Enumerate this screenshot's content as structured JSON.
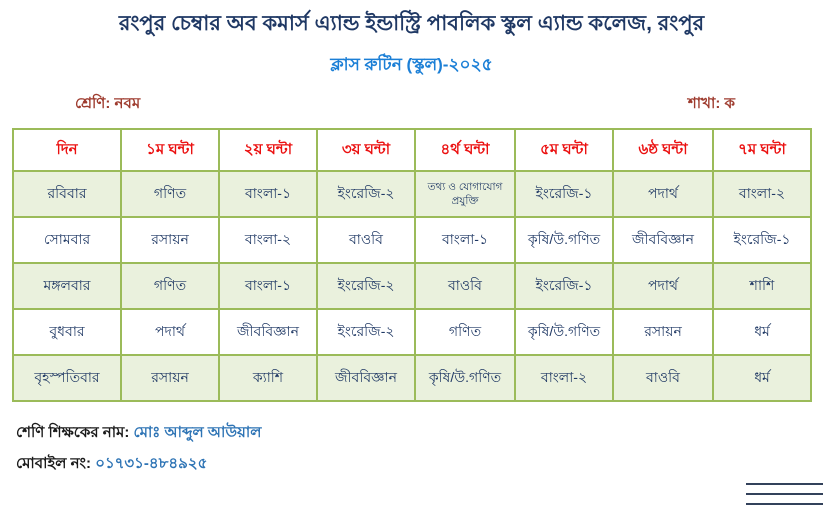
{
  "page": {
    "title": "রংপুর চেম্বার অব কমার্স এ্যান্ড ইন্ডাস্ট্রি পাবলিক স্কুল এ্যান্ড কলেজ, রংপুর",
    "subtitle": "ক্লাস রুটিন (স্কুল)-২০২৫",
    "class_label": "শ্রেণি: নবম",
    "section_label": "শাখা: ক"
  },
  "routine_table": {
    "headers": [
      "দিন",
      "১ম ঘন্টা",
      "২য় ঘন্টা",
      "৩য় ঘন্টা",
      "৪র্থ ঘন্টা",
      "৫ম ঘন্টা",
      "৬ষ্ঠ ঘন্টা",
      "৭ম ঘন্টা"
    ],
    "rows": [
      {
        "day": "রবিবার",
        "periods": [
          "গণিত",
          "বাংলা-১",
          "ইংরেজি-২",
          "তথ্য ও যোগাযোগ প্রযুক্তি",
          "ইংরেজি-১",
          "পদার্থ",
          "বাংলা-২"
        ]
      },
      {
        "day": "সোমবার",
        "periods": [
          "রসায়ন",
          "বাংলা-২",
          "বাওবি",
          "বাংলা-১",
          "কৃষি/উ.গণিত",
          "জীববিজ্ঞান",
          "ইংরেজি-১"
        ]
      },
      {
        "day": "মঙ্গলবার",
        "periods": [
          "গণিত",
          "বাংলা-১",
          "ইংরেজি-২",
          "বাওবি",
          "ইংরেজি-১",
          "পদার্থ",
          "শাশি"
        ]
      },
      {
        "day": "বুধবার",
        "periods": [
          "পদার্থ",
          "জীববিজ্ঞান",
          "ইংরেজি-২",
          "গণিত",
          "কৃষি/উ.গণিত",
          "রসায়ন",
          "ধর্ম"
        ]
      },
      {
        "day": "বৃহস্পতিবার",
        "periods": [
          "রসায়ন",
          "ক্যাশি",
          "জীববিজ্ঞান",
          "কৃষি/উ.গণিত",
          "বাংলা-২",
          "বাওবি",
          "ধর্ম"
        ]
      }
    ]
  },
  "footer": {
    "teacher_label": "শেণি শিক্ষকের নাম:",
    "teacher_name": "মোঃ আব্দুল আউয়াল",
    "mobile_label": "মোবাইল নং:",
    "mobile_number": "০১৭৩১-৪৮৪৯২৫"
  },
  "colors": {
    "title": "#1F3864",
    "subtitle": "#1B7FD6",
    "class_section": "#9E3B2E",
    "header_text": "#EB1010",
    "body_text": "#1F3864",
    "table_border": "#9BBB59",
    "row_shade": "#EAF1DD",
    "footer_value": "#2E74B5"
  }
}
